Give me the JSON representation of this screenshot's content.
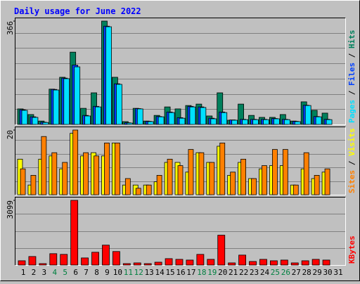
{
  "chart_data": {
    "type": "bar",
    "title": "Daily usage for June 2022",
    "categories": [
      "1",
      "2",
      "3",
      "4",
      "5",
      "6",
      "7",
      "8",
      "9",
      "10",
      "11",
      "12",
      "13",
      "14",
      "15",
      "16",
      "17",
      "18",
      "19",
      "20",
      "21",
      "22",
      "23",
      "24",
      "25",
      "26",
      "27",
      "28",
      "29",
      "30",
      "31"
    ],
    "category_colors": [
      "#000",
      "#000",
      "#000",
      "#008040",
      "#008040",
      "#000",
      "#000",
      "#000",
      "#000",
      "#000",
      "#008040",
      "#008040",
      "#000",
      "#000",
      "#000",
      "#000",
      "#000",
      "#008040",
      "#008040",
      "#000",
      "#000",
      "#000",
      "#000",
      "#000",
      "#008040",
      "#008040",
      "#000",
      "#000",
      "#000",
      "#000",
      "#000"
    ],
    "legend_separator": " / ",
    "panels": [
      {
        "ylim": [
          0,
          366
        ],
        "yticks": [
          366
        ],
        "series": [
          {
            "name": "Hits",
            "color": "#00805c",
            "values": [
              55,
              35,
              12,
              125,
              167,
              256,
              57,
              112,
              366,
              167,
              10,
              57,
              12,
              32,
              62,
              55,
              67,
              72,
              30,
              112,
              15,
              72,
              32,
              25,
              25,
              35,
              12,
              80,
              50,
              40,
              null
            ]
          },
          {
            "name": "Files",
            "color": "#0040ff",
            "values": [
              52,
              27,
              8,
              124,
              164,
              210,
              32,
              64,
              348,
              144,
              6,
              56,
              11,
              28,
              44,
              24,
              64,
              62,
              22,
              44,
              16,
              18,
              18,
              18,
              21,
              18,
              11,
              68,
              28,
              18,
              null
            ]
          },
          {
            "name": "Pages",
            "color": "#00e0ff",
            "values": [
              50,
              25,
              7,
              122,
              162,
              204,
              30,
              62,
              346,
              142,
              5,
              55,
              10,
              27,
              42,
              22,
              62,
              60,
              20,
              42,
              15,
              17,
              17,
              17,
              20,
              17,
              10,
              67,
              27,
              17,
              null
            ]
          }
        ]
      },
      {
        "ylim": [
          0,
          20
        ],
        "yticks": [
          20
        ],
        "series": [
          {
            "name": "Visits",
            "color": "#ffff00",
            "values": [
              11,
              3,
              11,
              12,
              8,
              19,
              12,
              13,
              12,
              16,
              3,
              3,
              3,
              4,
              10,
              10,
              7,
              13,
              10,
              15,
              6,
              10,
              5,
              8,
              9,
              9,
              3,
              8,
              5,
              7,
              null
            ]
          },
          {
            "name": "Sites",
            "color": "#ff8000",
            "values": [
              8,
              6,
              18,
              13,
              10,
              20,
              13,
              12,
              16,
              16,
              5,
              2,
              3,
              6,
              11,
              9,
              14,
              13,
              10,
              16,
              7,
              11,
              5,
              9,
              14,
              14,
              3,
              13,
              6,
              8,
              null
            ]
          }
        ]
      },
      {
        "ylim": [
          0,
          3099
        ],
        "yticks": [
          3099
        ],
        "series": [
          {
            "name": "KBytes",
            "color": "#ff0000",
            "values": [
              204,
              408,
              68,
              544,
              510,
              3099,
              340,
              612,
              953,
              647,
              68,
              102,
              68,
              136,
              306,
              272,
              238,
              510,
              272,
              1430,
              102,
              476,
              170,
              272,
              204,
              238,
              102,
              204,
              272,
              238,
              null
            ]
          }
        ]
      }
    ]
  }
}
